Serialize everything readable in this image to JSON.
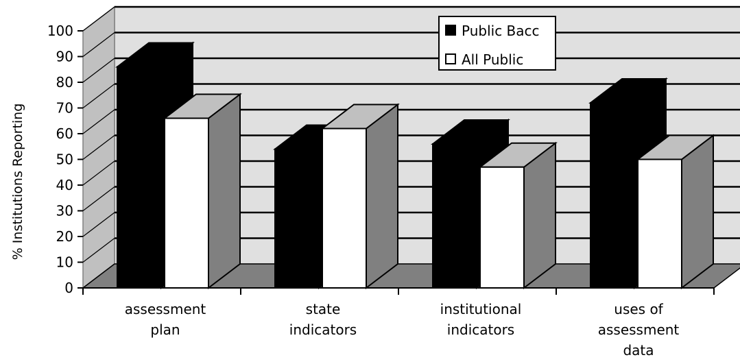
{
  "chart_data": {
    "type": "bar",
    "style": "3d-clustered-column",
    "categories": [
      [
        "assessment",
        "plan"
      ],
      [
        "state",
        "indicators"
      ],
      [
        "institutional",
        "indicators"
      ],
      [
        "uses of",
        "assessment",
        "data"
      ]
    ],
    "series": [
      {
        "name": "Public Bacc",
        "values": [
          86,
          54,
          56,
          72
        ],
        "color": "#000000"
      },
      {
        "name": "All Public",
        "values": [
          66,
          62,
          47,
          50
        ],
        "color": "#ffffff"
      }
    ],
    "ylabel": "% Institutions Reporting",
    "ylim": [
      0,
      100
    ],
    "yticks": [
      0,
      10,
      20,
      30,
      40,
      50,
      60,
      70,
      80,
      90,
      100
    ],
    "grid": true,
    "legend_position": "top-right",
    "colors": {
      "wall": "#e0e0e0",
      "floor": "#808080",
      "bar_side": "#808080",
      "white_bar_top": "#c0c0c0"
    }
  }
}
